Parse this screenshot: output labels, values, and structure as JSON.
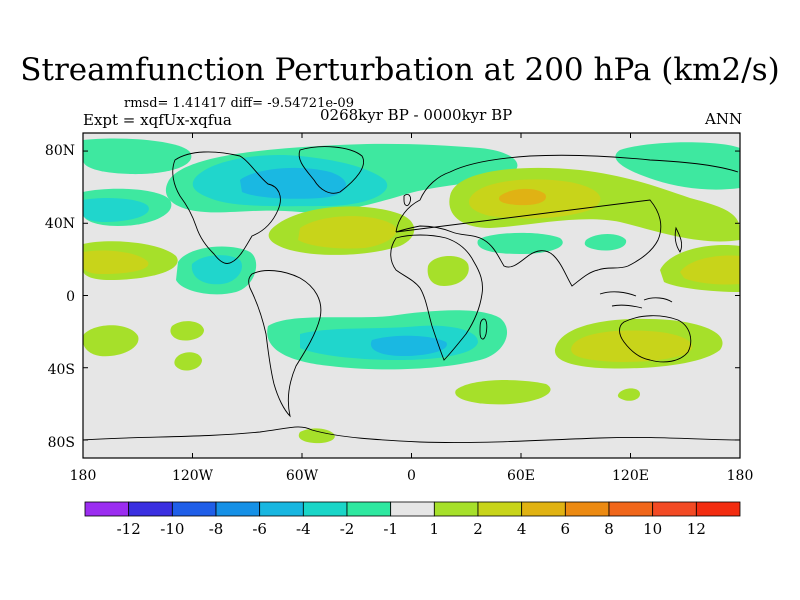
{
  "title": "Streamfunction Perturbation at 200 hPa (km2/s)",
  "stats": {
    "rmsd": "rmsd= 1.41417 diff= -9.54721e-09"
  },
  "experiment": "Expt = xqfUx-xqfua",
  "period": "0268kyr BP - 0000kyr BP",
  "season": "ANN",
  "map": {
    "lat_labels": [
      "80N",
      "40N",
      "0",
      "40S",
      "80S"
    ],
    "lon_labels": [
      "180",
      "120W",
      "60W",
      "0",
      "60E",
      "120E",
      "180"
    ],
    "lat_values": [
      80,
      40,
      0,
      -40,
      -80
    ],
    "lon_values": [
      -180,
      -120,
      -60,
      0,
      60,
      120,
      180
    ]
  },
  "colorbar": {
    "labels": [
      "-12",
      "-10",
      "-8",
      "-6",
      "-4",
      "-2",
      "-1",
      "1",
      "2",
      "4",
      "6",
      "8",
      "10",
      "12"
    ],
    "colors": [
      "#9b2df0",
      "#3a2fe0",
      "#1f5ee8",
      "#1590e6",
      "#18b6e0",
      "#1ad6c8",
      "#2ee8a0",
      "#e6e6e6",
      "#a6e02a",
      "#c8d41a",
      "#e0b212",
      "#ec8a12",
      "#f0661a",
      "#f24a24",
      "#f22c10"
    ]
  },
  "colors": {
    "c_m1": "#3ee8a0",
    "c_m2": "#20d6cc",
    "c_m4": "#1ab8e2",
    "c_p1": "#a6e02a",
    "c_p2": "#c8d41a",
    "c_p4": "#e0b214",
    "background": "#e6e6e6"
  }
}
